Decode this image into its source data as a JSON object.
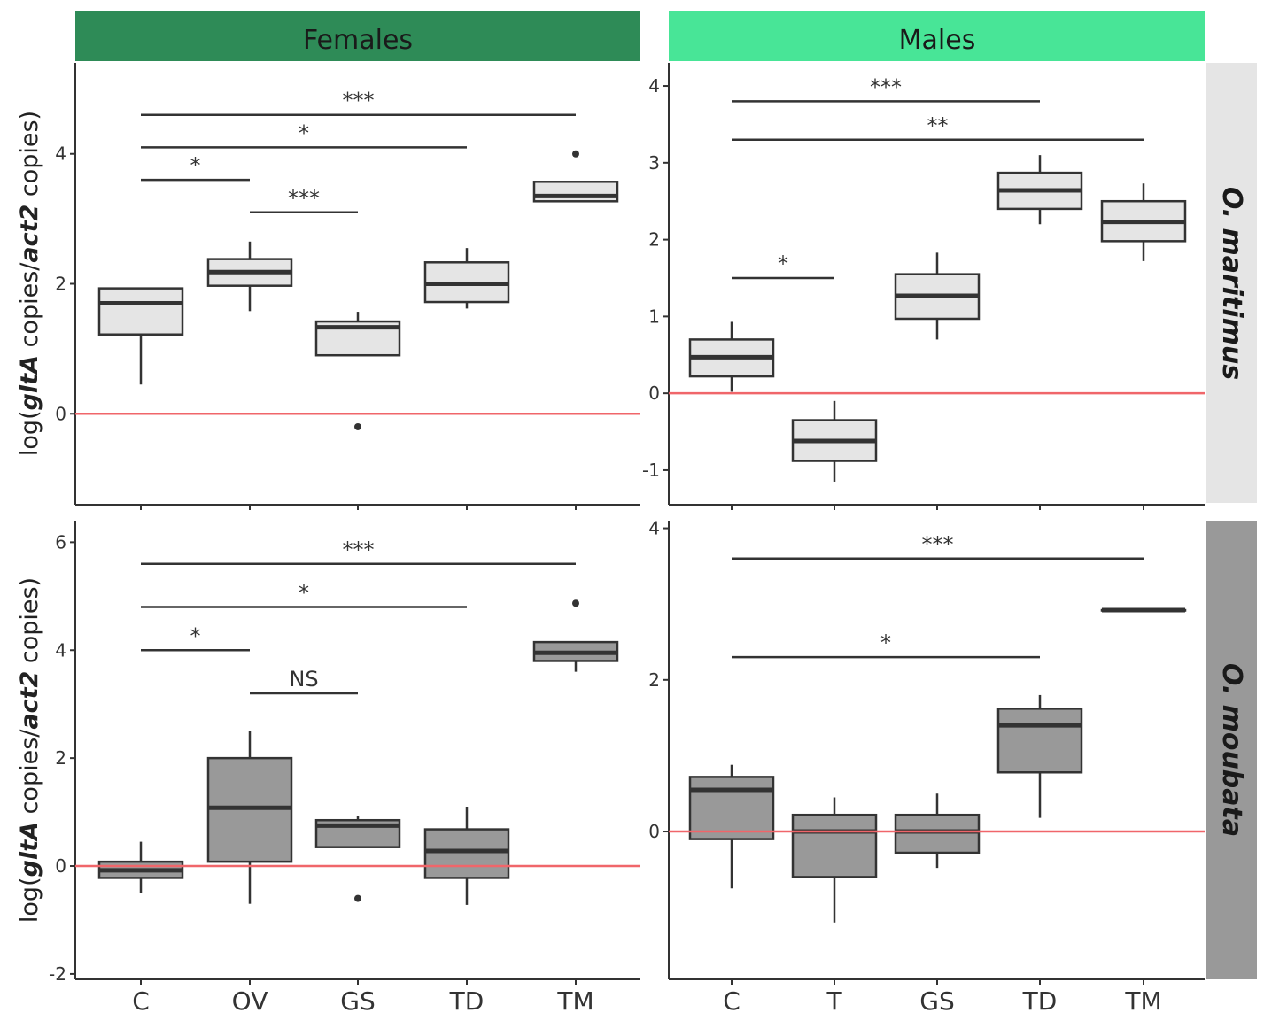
{
  "chart_data": {
    "type": "box",
    "ylabel": {
      "prefix": "log(",
      "gene1": "gltA",
      "mid": " copies/",
      "gene2": "act2",
      "suffix": "  copies)"
    },
    "column_strips": [
      {
        "label": "Females",
        "color": "#2e8b57"
      },
      {
        "label": "Males",
        "color": "#48e597"
      }
    ],
    "row_strips": [
      {
        "label": "O. maritimus",
        "color": "#e5e5e5"
      },
      {
        "label": "O. moubata",
        "color": "#999999"
      }
    ],
    "reference_line": {
      "y": 0,
      "color": "#f0666a"
    },
    "panels": [
      {
        "sex": "Females",
        "species": "O. maritimus",
        "box_fill": "#e5e5e5",
        "categories": [
          "C",
          "OV",
          "GS",
          "TD",
          "TM"
        ],
        "ylim": [
          -1.4,
          5.4
        ],
        "yticks": [
          0,
          2,
          4
        ],
        "boxes": [
          {
            "category": "C",
            "lower_whisker": 0.45,
            "q1": 1.22,
            "median": 1.7,
            "q3": 1.93,
            "upper_whisker": 1.93,
            "outliers": []
          },
          {
            "category": "OV",
            "lower_whisker": 1.58,
            "q1": 1.97,
            "median": 2.18,
            "q3": 2.38,
            "upper_whisker": 2.65,
            "outliers": []
          },
          {
            "category": "GS",
            "lower_whisker": 0.9,
            "q1": 0.9,
            "median": 1.33,
            "q3": 1.42,
            "upper_whisker": 1.57,
            "outliers": [
              -0.2
            ]
          },
          {
            "category": "TD",
            "lower_whisker": 1.62,
            "q1": 1.72,
            "median": 2.0,
            "q3": 2.33,
            "upper_whisker": 2.55,
            "outliers": []
          },
          {
            "category": "TM",
            "lower_whisker": 3.27,
            "q1": 3.27,
            "median": 3.35,
            "q3": 3.57,
            "upper_whisker": 3.57,
            "outliers": [
              4.0
            ]
          }
        ],
        "comparisons": [
          {
            "from": "C",
            "to": "TM",
            "y": 4.6,
            "label": "***"
          },
          {
            "from": "C",
            "to": "TD",
            "y": 4.1,
            "label": "*"
          },
          {
            "from": "C",
            "to": "OV",
            "y": 3.6,
            "label": "*"
          },
          {
            "from": "OV",
            "to": "GS",
            "y": 3.1,
            "label": "***"
          }
        ]
      },
      {
        "sex": "Males",
        "species": "O. maritimus",
        "box_fill": "#e5e5e5",
        "categories": [
          "C",
          "T",
          "GS",
          "TD",
          "TM"
        ],
        "ylim": [
          -1.45,
          4.3
        ],
        "yticks": [
          -1,
          0,
          1,
          2,
          3,
          4
        ],
        "boxes": [
          {
            "category": "C",
            "lower_whisker": 0.02,
            "q1": 0.22,
            "median": 0.47,
            "q3": 0.7,
            "upper_whisker": 0.93,
            "outliers": []
          },
          {
            "category": "T",
            "lower_whisker": -1.15,
            "q1": -0.88,
            "median": -0.62,
            "q3": -0.35,
            "upper_whisker": -0.1,
            "outliers": []
          },
          {
            "category": "GS",
            "lower_whisker": 0.7,
            "q1": 0.97,
            "median": 1.27,
            "q3": 1.55,
            "upper_whisker": 1.83,
            "outliers": []
          },
          {
            "category": "TD",
            "lower_whisker": 2.2,
            "q1": 2.4,
            "median": 2.64,
            "q3": 2.87,
            "upper_whisker": 3.1,
            "outliers": []
          },
          {
            "category": "TM",
            "lower_whisker": 1.72,
            "q1": 1.98,
            "median": 2.23,
            "q3": 2.5,
            "upper_whisker": 2.73,
            "outliers": []
          }
        ],
        "comparisons": [
          {
            "from": "C",
            "to": "TD",
            "y": 3.8,
            "label": "***"
          },
          {
            "from": "C",
            "to": "TM",
            "y": 3.3,
            "label": "**"
          },
          {
            "from": "C",
            "to": "T",
            "y": 1.5,
            "label": "*"
          }
        ]
      },
      {
        "sex": "Females",
        "species": "O. moubata",
        "box_fill": "#999999",
        "categories": [
          "C",
          "OV",
          "GS",
          "TD",
          "TM"
        ],
        "ylim": [
          -2.1,
          6.4
        ],
        "yticks": [
          -2,
          0,
          2,
          4,
          6
        ],
        "boxes": [
          {
            "category": "C",
            "lower_whisker": -0.5,
            "q1": -0.22,
            "median": -0.08,
            "q3": 0.08,
            "upper_whisker": 0.45,
            "outliers": []
          },
          {
            "category": "OV",
            "lower_whisker": -0.7,
            "q1": 0.08,
            "median": 1.08,
            "q3": 2.0,
            "upper_whisker": 2.5,
            "outliers": []
          },
          {
            "category": "GS",
            "lower_whisker": 0.35,
            "q1": 0.35,
            "median": 0.75,
            "q3": 0.85,
            "upper_whisker": 0.92,
            "outliers": [
              -0.6
            ]
          },
          {
            "category": "TD",
            "lower_whisker": -0.72,
            "q1": -0.22,
            "median": 0.28,
            "q3": 0.68,
            "upper_whisker": 1.1,
            "outliers": []
          },
          {
            "category": "TM",
            "lower_whisker": 3.6,
            "q1": 3.8,
            "median": 3.95,
            "q3": 4.15,
            "upper_whisker": 4.15,
            "outliers": [
              4.87
            ]
          }
        ],
        "comparisons": [
          {
            "from": "C",
            "to": "TM",
            "y": 5.6,
            "label": "***"
          },
          {
            "from": "C",
            "to": "TD",
            "y": 4.8,
            "label": "*"
          },
          {
            "from": "C",
            "to": "OV",
            "y": 4.0,
            "label": "*"
          },
          {
            "from": "OV",
            "to": "GS",
            "y": 3.2,
            "label": "NS"
          }
        ]
      },
      {
        "sex": "Males",
        "species": "O. moubata",
        "box_fill": "#999999",
        "categories": [
          "C",
          "T",
          "GS",
          "TD",
          "TM"
        ],
        "ylim": [
          -1.95,
          4.1
        ],
        "yticks": [
          0,
          2,
          4
        ],
        "boxes": [
          {
            "category": "C",
            "lower_whisker": -0.75,
            "q1": -0.1,
            "median": 0.55,
            "q3": 0.72,
            "upper_whisker": 0.88,
            "outliers": []
          },
          {
            "category": "T",
            "lower_whisker": -1.2,
            "q1": -0.6,
            "median": 0.0,
            "q3": 0.22,
            "upper_whisker": 0.45,
            "outliers": []
          },
          {
            "category": "GS",
            "lower_whisker": -0.48,
            "q1": -0.28,
            "median": 0.0,
            "q3": 0.22,
            "upper_whisker": 0.5,
            "outliers": []
          },
          {
            "category": "TD",
            "lower_whisker": 0.18,
            "q1": 0.78,
            "median": 1.4,
            "q3": 1.62,
            "upper_whisker": 1.8,
            "outliers": []
          },
          {
            "category": "TM",
            "lower_whisker": 2.92,
            "q1": 2.92,
            "median": 2.92,
            "q3": 2.92,
            "upper_whisker": 2.92,
            "outliers": []
          }
        ],
        "comparisons": [
          {
            "from": "C",
            "to": "TM",
            "y": 3.6,
            "label": "***"
          },
          {
            "from": "C",
            "to": "TD",
            "y": 2.3,
            "label": "*"
          }
        ]
      }
    ]
  }
}
